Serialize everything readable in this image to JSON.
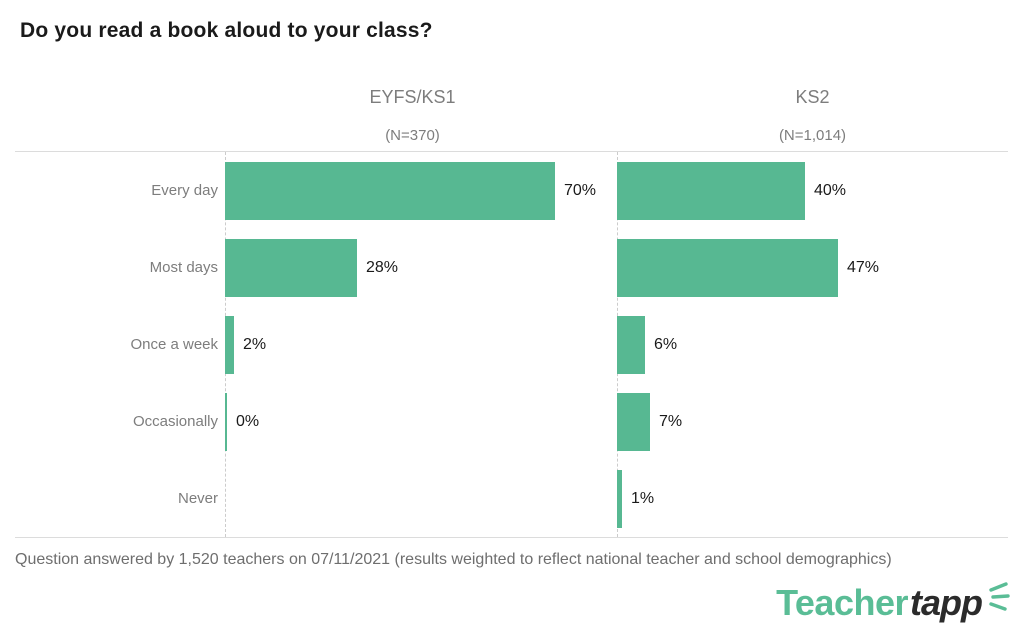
{
  "page": {
    "title": "Do you read a book aloud to your class?",
    "footnote": "Question answered by 1,520 teachers on 07/11/2021 (results weighted to reflect national teacher and school demographics)",
    "logo": {
      "part1": "Teacher",
      "part2": "tapp",
      "sparkle": "sparkle-rays-icon"
    }
  },
  "colors": {
    "bar": "#57B892",
    "logo_green": "#5ABD96",
    "text_dark": "#1A1A1A",
    "gray": "#7D7D7D",
    "footer_gray": "#6E6E6E",
    "rule": "#DCDCDC",
    "dash": "#CCCCCC"
  },
  "chart_data": {
    "type": "bar",
    "orientation": "horizontal",
    "title": "Do you read a book aloud to your class?",
    "categories": [
      "Every day",
      "Most days",
      "Once a week",
      "Occasionally",
      "Never"
    ],
    "panels": [
      {
        "label": "EYFS/KS1",
        "n_label": "(N=370)",
        "values": [
          70,
          28,
          2,
          0,
          null
        ],
        "value_labels": [
          "70%",
          "28%",
          "2%",
          "0%",
          ""
        ]
      },
      {
        "label": "KS2",
        "n_label": "(N=1,014)",
        "values": [
          40,
          47,
          6,
          7,
          1
        ],
        "value_labels": [
          "40%",
          "47%",
          "6%",
          "7%",
          "1%"
        ]
      }
    ],
    "xlim": [
      0,
      80
    ],
    "grid": "off",
    "legend": "none",
    "value_labels_shown": true
  }
}
